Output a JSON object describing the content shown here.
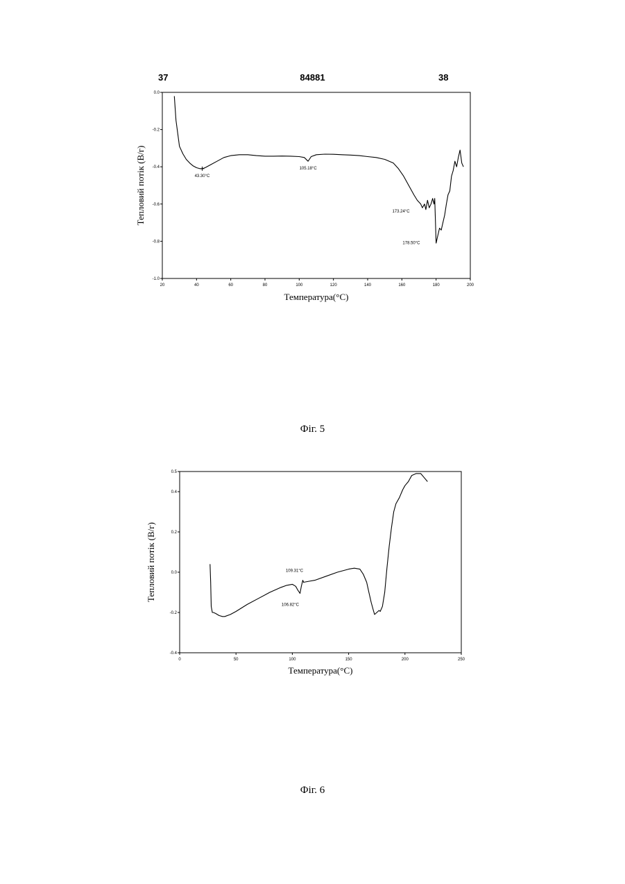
{
  "header": {
    "left": "37",
    "center": "84881",
    "right": "38"
  },
  "chart_data": [
    {
      "type": "line",
      "xlabel": "Температура(°C)",
      "ylabel": "Тепловий потік (В/г)",
      "xlim": [
        20,
        200
      ],
      "ylim": [
        -1.0,
        0.0
      ],
      "xticks": [
        20,
        40,
        60,
        80,
        100,
        120,
        140,
        160,
        180,
        200
      ],
      "xtick_labels": [
        "20",
        "40",
        "60",
        "80",
        "100",
        "120",
        "140",
        "160",
        "180",
        "200"
      ],
      "yticks": [
        0.0,
        -0.2,
        -0.4,
        -0.6,
        -0.8,
        -1.0
      ],
      "ytick_labels": [
        "0.0",
        "-0.2",
        "-0.4",
        "-0.6",
        "-0.8",
        "-1.0"
      ],
      "series": [
        {
          "x": [
            27,
            28,
            30,
            32,
            34,
            36,
            38,
            40,
            42,
            43.3,
            45,
            48,
            52,
            56,
            60,
            65,
            70,
            75,
            80,
            85,
            90,
            95,
            100,
            103,
            105.18,
            107,
            110,
            115,
            120,
            125,
            130,
            135,
            140,
            145,
            150,
            155,
            158,
            161,
            164,
            167,
            169,
            171,
            172,
            173.24,
            174,
            175,
            176,
            177,
            178,
            178.5,
            178.8,
            179.2,
            180,
            181,
            182,
            183,
            184,
            185,
            186,
            187,
            188,
            189,
            190,
            191,
            192,
            193,
            194,
            195,
            196
          ],
          "y": [
            -0.02,
            -0.15,
            -0.29,
            -0.33,
            -0.36,
            -0.38,
            -0.395,
            -0.405,
            -0.41,
            -0.41,
            -0.405,
            -0.39,
            -0.37,
            -0.35,
            -0.34,
            -0.335,
            -0.335,
            -0.34,
            -0.343,
            -0.343,
            -0.342,
            -0.343,
            -0.345,
            -0.35,
            -0.37,
            -0.345,
            -0.335,
            -0.332,
            -0.333,
            -0.335,
            -0.337,
            -0.34,
            -0.345,
            -0.35,
            -0.36,
            -0.38,
            -0.41,
            -0.45,
            -0.5,
            -0.55,
            -0.58,
            -0.6,
            -0.62,
            -0.6,
            -0.63,
            -0.58,
            -0.62,
            -0.6,
            -0.57,
            -0.59,
            -0.6,
            -0.57,
            -0.81,
            -0.77,
            -0.73,
            -0.74,
            -0.7,
            -0.66,
            -0.6,
            -0.55,
            -0.53,
            -0.45,
            -0.42,
            -0.37,
            -0.4,
            -0.35,
            -0.31,
            -0.38,
            -0.4
          ]
        }
      ],
      "annotations": [
        {
          "text": "43.30°C",
          "x": 43.3,
          "y": -0.41,
          "marker": true
        },
        {
          "text": "105.18°C",
          "x": 105.18,
          "y": -0.37,
          "marker": false
        },
        {
          "text": "173.24°C",
          "x": 173.24,
          "y": -0.6,
          "marker": false
        },
        {
          "text": "178.50°C",
          "x": 178.5,
          "y": -0.71,
          "marker": false
        }
      ],
      "caption": "Фіг. 5"
    },
    {
      "type": "line",
      "xlabel": "Температура(°C)",
      "ylabel": "Тепловий потік (В/г)",
      "xlim": [
        0,
        250
      ],
      "ylim": [
        -0.4,
        0.5
      ],
      "xticks": [
        0,
        50,
        100,
        150,
        200,
        250
      ],
      "xtick_labels": [
        "0",
        "50",
        "100",
        "150",
        "200",
        "250"
      ],
      "yticks": [
        0.5,
        0.4,
        0.2,
        0.0,
        -0.2,
        -0.4
      ],
      "ytick_labels": [
        "0.5",
        "0.4",
        "0.2",
        "0.0",
        "-0.2",
        "-0.4"
      ],
      "series": [
        {
          "x": [
            27,
            27.5,
            28,
            29,
            30,
            32,
            35,
            38,
            40,
            45,
            50,
            60,
            70,
            80,
            90,
            95,
            100,
            103,
            105,
            106.82,
            108,
            109.31,
            110,
            115,
            120,
            130,
            140,
            150,
            155,
            160,
            163,
            166,
            168,
            170,
            172,
            173,
            175,
            177,
            178,
            180,
            182,
            184,
            186,
            188,
            190,
            192,
            195,
            198,
            200,
            203,
            206,
            210,
            214,
            217,
            220
          ],
          "y": [
            0.04,
            -0.05,
            -0.17,
            -0.2,
            -0.2,
            -0.205,
            -0.215,
            -0.22,
            -0.22,
            -0.21,
            -0.195,
            -0.16,
            -0.13,
            -0.1,
            -0.075,
            -0.065,
            -0.06,
            -0.07,
            -0.09,
            -0.105,
            -0.07,
            -0.04,
            -0.05,
            -0.045,
            -0.04,
            -0.02,
            0.0,
            0.015,
            0.02,
            0.015,
            -0.01,
            -0.05,
            -0.1,
            -0.15,
            -0.19,
            -0.21,
            -0.2,
            -0.19,
            -0.195,
            -0.17,
            -0.1,
            0.02,
            0.13,
            0.22,
            0.3,
            0.34,
            0.37,
            0.41,
            0.43,
            0.45,
            0.48,
            0.49,
            0.49,
            0.47,
            0.45
          ]
        }
      ],
      "annotations": [
        {
          "text": "109.31°C",
          "x": 109.31,
          "y": -0.04,
          "marker": false
        },
        {
          "text": "106.82°C",
          "x": 106.82,
          "y": -0.105,
          "marker": false
        }
      ],
      "caption": "Фіг. 6"
    }
  ]
}
